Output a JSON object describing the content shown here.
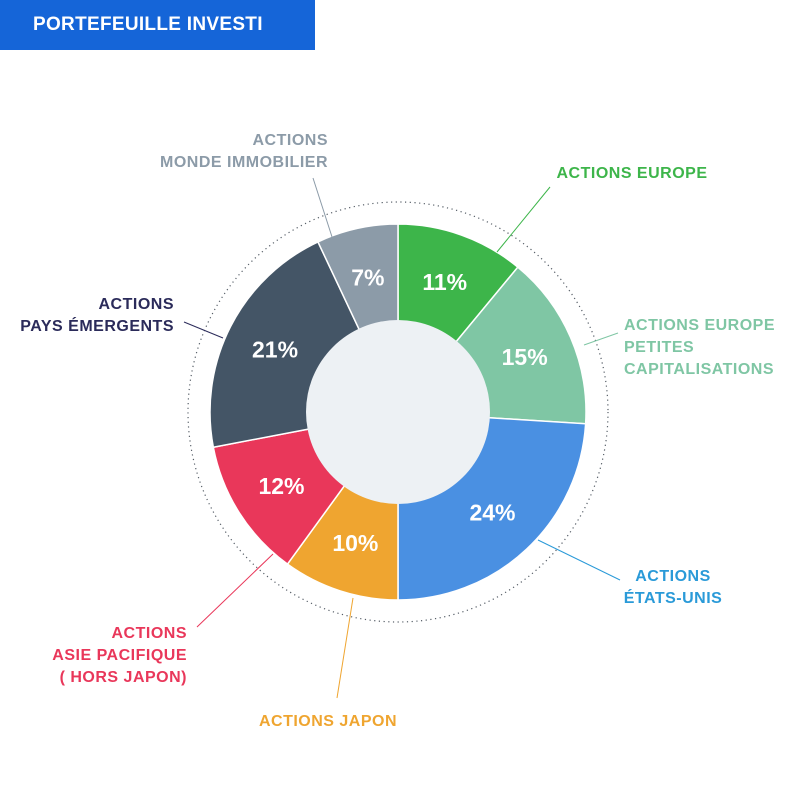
{
  "banner": {
    "title": "PORTEFEUILLE INVESTI"
  },
  "chart_data": {
    "type": "pie",
    "donut": true,
    "title": "PORTEFEUILLE INVESTI",
    "unit": "%",
    "slices": [
      {
        "label_lines": [
          "ACTIONS EUROPE"
        ],
        "value": 11,
        "value_label": "11%",
        "color": "#3db54a",
        "label_color": "#3db54a"
      },
      {
        "label_lines": [
          "ACTIONS EUROPE",
          "PETITES",
          "CAPITALISATIONS"
        ],
        "value": 15,
        "value_label": "15%",
        "color": "#7fc6a4",
        "label_color": "#7fc6a4"
      },
      {
        "label_lines": [
          "ACTIONS",
          "ÉTATS-UNIS"
        ],
        "value": 24,
        "value_label": "24%",
        "color": "#4a90e2",
        "label_color": "#2a9ad8"
      },
      {
        "label_lines": [
          "ACTIONS JAPON"
        ],
        "value": 10,
        "value_label": "10%",
        "color": "#efa530",
        "label_color": "#efa530"
      },
      {
        "label_lines": [
          "ACTIONS",
          "ASIE PACIFIQUE",
          "( HORS JAPON)"
        ],
        "value": 12,
        "value_label": "12%",
        "color": "#e9375a",
        "label_color": "#e9375a"
      },
      {
        "label_lines": [
          "ACTIONS",
          "PAYS ÉMERGENTS"
        ],
        "value": 21,
        "value_label": "21%",
        "color": "#445566",
        "label_color": "#2b2b5a"
      },
      {
        "label_lines": [
          "ACTIONS",
          "MONDE IMMOBILIER"
        ],
        "value": 7,
        "value_label": "7%",
        "color": "#8c9ba8",
        "label_color": "#8c9ba8"
      }
    ],
    "center_color": "#edf1f4",
    "ring_color": "#555d66"
  }
}
